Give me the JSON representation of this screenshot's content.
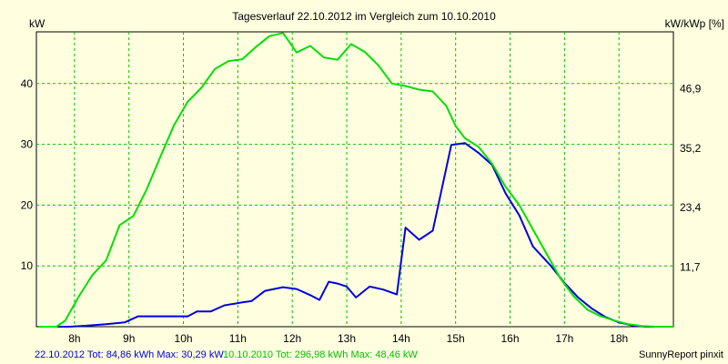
{
  "chart_data": {
    "type": "line",
    "title": "Tagesverlauf 22.10.2012 im Vergleich zum 10.10.2010",
    "ylabel_left": "kW",
    "ylabel_right": "kW/kWp [%]",
    "xlim": [
      7.3,
      19.0
    ],
    "ylim": [
      0,
      48.5
    ],
    "x_ticks": [
      {
        "x": 8,
        "label": "8h"
      },
      {
        "x": 9,
        "label": "9h"
      },
      {
        "x": 10,
        "label": "10h"
      },
      {
        "x": 11,
        "label": "11h"
      },
      {
        "x": 12,
        "label": "12h"
      },
      {
        "x": 13,
        "label": "13h"
      },
      {
        "x": 14,
        "label": "14h"
      },
      {
        "x": 15,
        "label": "15h"
      },
      {
        "x": 16,
        "label": "16h"
      },
      {
        "x": 17,
        "label": "17h"
      },
      {
        "x": 18,
        "label": "18h"
      }
    ],
    "y_ticks_left": [
      {
        "y": 10,
        "label": "10"
      },
      {
        "y": 20,
        "label": "20"
      },
      {
        "y": 30,
        "label": "30"
      },
      {
        "y": 40,
        "label": "40"
      }
    ],
    "y_ticks_right": [
      {
        "y": 9.79,
        "label": "11,7"
      },
      {
        "y": 19.58,
        "label": "23,4"
      },
      {
        "y": 29.37,
        "label": "35,2"
      },
      {
        "y": 39.16,
        "label": "46,9"
      }
    ],
    "grid": true,
    "series": [
      {
        "name": "22.10.2012",
        "color": "#0000DD",
        "points": [
          [
            7.33,
            0
          ],
          [
            7.92,
            0
          ],
          [
            8.25,
            0.2
          ],
          [
            8.58,
            0.4
          ],
          [
            8.92,
            0.7
          ],
          [
            9.17,
            1.7
          ],
          [
            9.5,
            1.7
          ],
          [
            9.83,
            1.7
          ],
          [
            10.08,
            1.7
          ],
          [
            10.25,
            2.5
          ],
          [
            10.5,
            2.5
          ],
          [
            10.75,
            3.5
          ],
          [
            11.08,
            4.0
          ],
          [
            11.25,
            4.2
          ],
          [
            11.5,
            5.9
          ],
          [
            11.83,
            6.5
          ],
          [
            12.08,
            6.2
          ],
          [
            12.33,
            5.2
          ],
          [
            12.5,
            4.4
          ],
          [
            12.67,
            7.4
          ],
          [
            12.83,
            7.1
          ],
          [
            13.0,
            6.6
          ],
          [
            13.17,
            4.8
          ],
          [
            13.42,
            6.6
          ],
          [
            13.67,
            6.1
          ],
          [
            13.92,
            5.3
          ],
          [
            14.08,
            16.3
          ],
          [
            14.33,
            14.3
          ],
          [
            14.58,
            15.8
          ],
          [
            14.92,
            29.9
          ],
          [
            15.17,
            30.2
          ],
          [
            15.42,
            28.6
          ],
          [
            15.67,
            26.6
          ],
          [
            15.92,
            21.9
          ],
          [
            16.17,
            18.3
          ],
          [
            16.42,
            13.2
          ],
          [
            16.75,
            10.0
          ],
          [
            17.0,
            7.2
          ],
          [
            17.25,
            4.8
          ],
          [
            17.5,
            3.0
          ],
          [
            17.75,
            1.6
          ],
          [
            18.0,
            0.7
          ],
          [
            18.25,
            0.2
          ],
          [
            18.5,
            0
          ],
          [
            19.0,
            0
          ]
        ]
      },
      {
        "name": "10.10.2010",
        "color": "#00E000",
        "points": [
          [
            7.33,
            0
          ],
          [
            7.67,
            0
          ],
          [
            7.83,
            1.0
          ],
          [
            8.08,
            5.0
          ],
          [
            8.33,
            8.5
          ],
          [
            8.58,
            10.9
          ],
          [
            8.83,
            16.7
          ],
          [
            9.08,
            18.2
          ],
          [
            9.33,
            22.7
          ],
          [
            9.58,
            28.0
          ],
          [
            9.83,
            33.2
          ],
          [
            10.08,
            37.0
          ],
          [
            10.33,
            39.3
          ],
          [
            10.58,
            42.4
          ],
          [
            10.83,
            43.7
          ],
          [
            11.08,
            44.0
          ],
          [
            11.33,
            46.0
          ],
          [
            11.58,
            47.8
          ],
          [
            11.83,
            48.3
          ],
          [
            12.08,
            45.1
          ],
          [
            12.33,
            46.2
          ],
          [
            12.58,
            44.3
          ],
          [
            12.83,
            43.9
          ],
          [
            13.08,
            46.5
          ],
          [
            13.33,
            45.2
          ],
          [
            13.58,
            43.0
          ],
          [
            13.83,
            40.0
          ],
          [
            14.08,
            39.6
          ],
          [
            14.33,
            39.0
          ],
          [
            14.58,
            38.7
          ],
          [
            14.83,
            36.3
          ],
          [
            15.0,
            33.0
          ],
          [
            15.17,
            31.0
          ],
          [
            15.42,
            29.6
          ],
          [
            15.67,
            26.8
          ],
          [
            15.92,
            23.0
          ],
          [
            16.17,
            20.0
          ],
          [
            16.42,
            16.0
          ],
          [
            16.67,
            12.0
          ],
          [
            16.92,
            8.0
          ],
          [
            17.17,
            5.0
          ],
          [
            17.42,
            2.8
          ],
          [
            17.67,
            1.7
          ],
          [
            17.92,
            1.0
          ],
          [
            18.17,
            0.4
          ],
          [
            18.42,
            0.1
          ],
          [
            18.67,
            0
          ],
          [
            19.0,
            0
          ]
        ]
      }
    ]
  },
  "footer": {
    "series1_summary": "22.10.2012 Tot: 84,86 kWh Max: 30,29 kW",
    "series2_summary": "10.10.2010 Tot: 296,98 kWh Max: 48,46 kW",
    "credit": "SunnyReport pinxit"
  }
}
